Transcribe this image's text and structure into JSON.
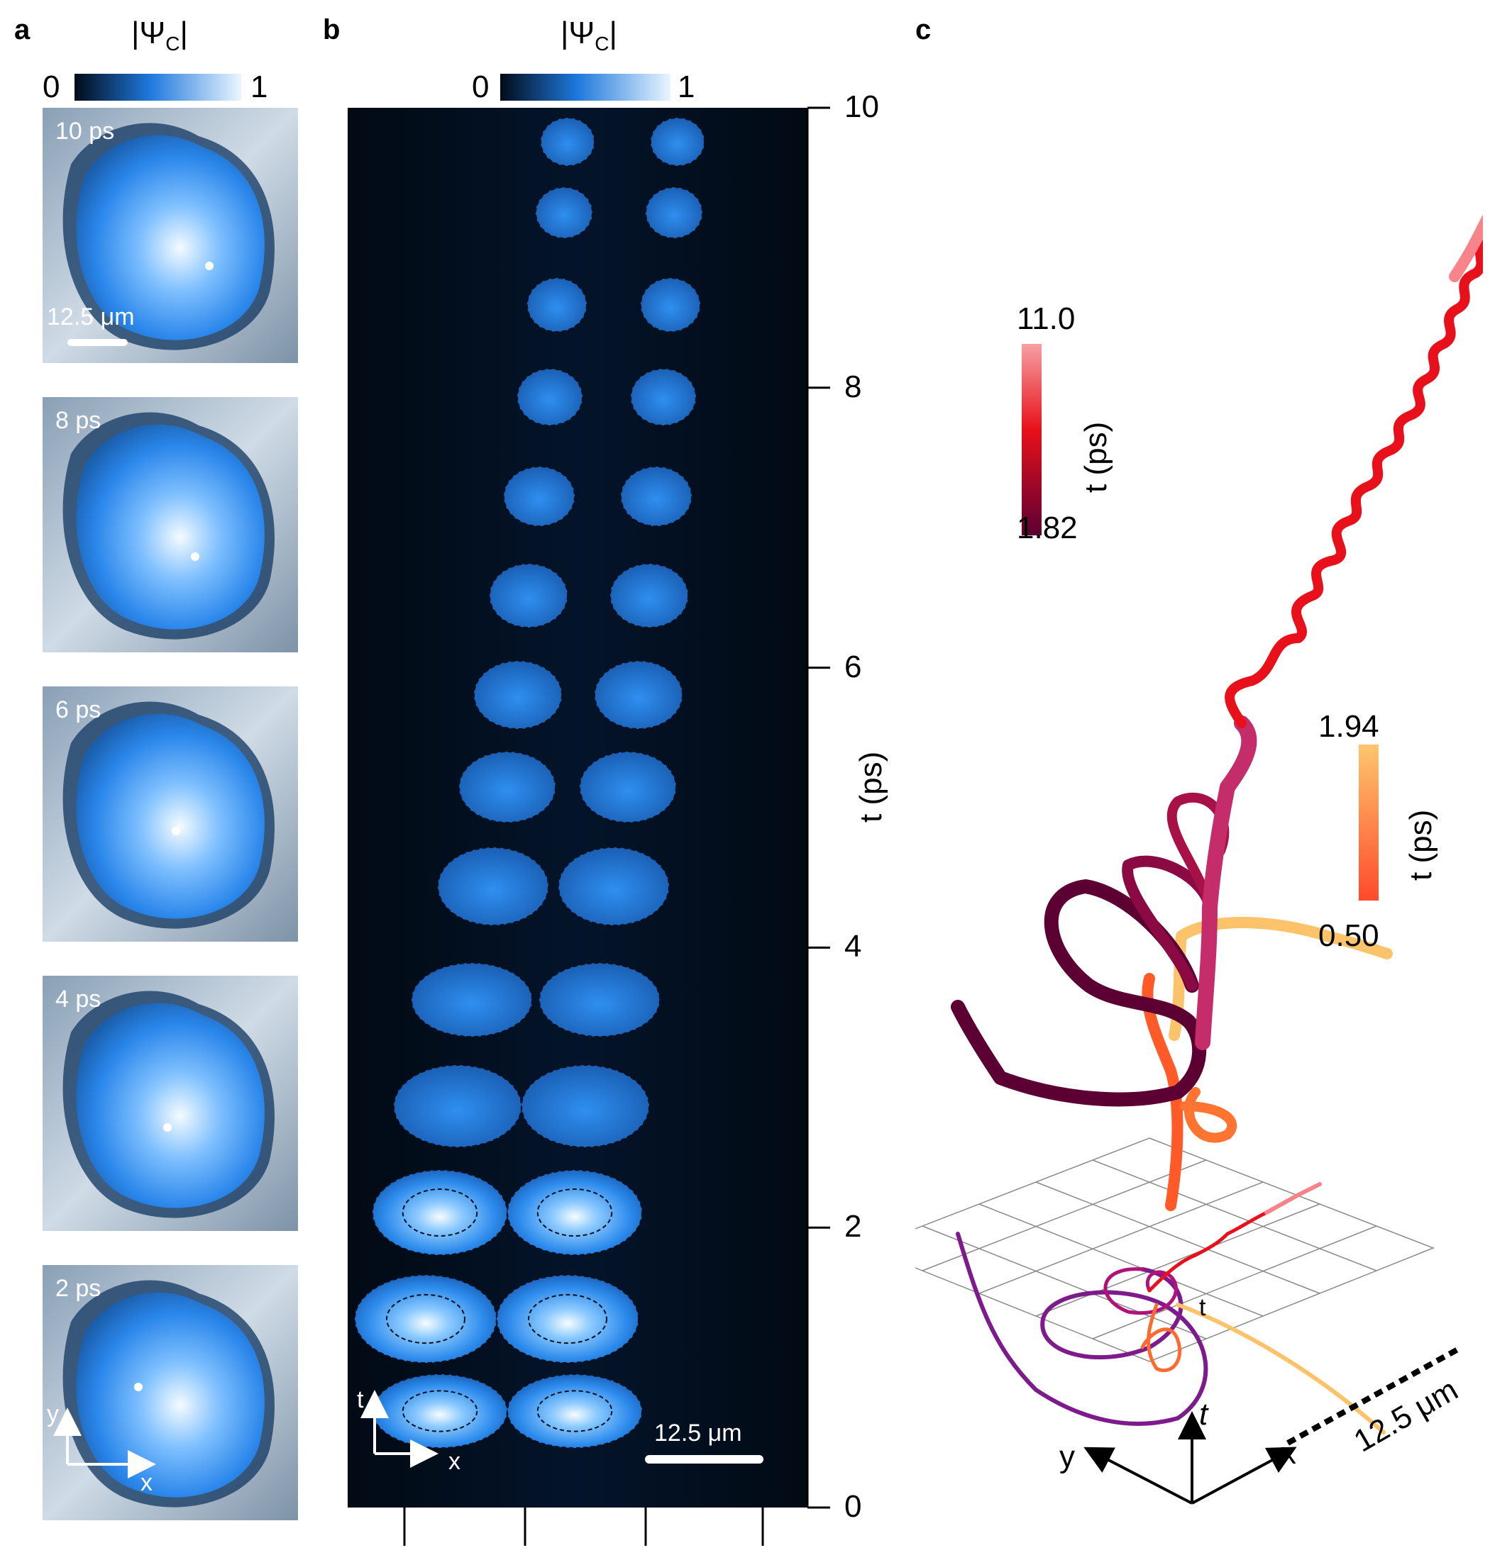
{
  "panel_a": {
    "letter": "a",
    "colorbar": {
      "title": "|Ψ",
      "subscript": "C",
      "title_end": "|",
      "min": "0",
      "max": "1"
    },
    "snapshots": [
      {
        "label": "10 ps"
      },
      {
        "label": "8 ps"
      },
      {
        "label": "6 ps"
      },
      {
        "label": "4 ps"
      },
      {
        "label": "2 ps"
      }
    ],
    "scalebar": "12.5 μm",
    "axis_y": "y",
    "axis_x": "x"
  },
  "panel_b": {
    "letter": "b",
    "colorbar": {
      "title": "|Ψ",
      "subscript": "C",
      "title_end": "|",
      "min": "0",
      "max": "1"
    },
    "yticks": [
      "0",
      "2",
      "4",
      "6",
      "8",
      "10"
    ],
    "ylabel": "t (ps)",
    "axis_t": "t",
    "axis_x": "x",
    "scalebar": "12.5 μm"
  },
  "panel_c": {
    "letter": "c",
    "colorbar_upper": {
      "max": "11.0",
      "min": "1.82",
      "label": "t (ps)"
    },
    "colorbar_lower": {
      "max": "1.94",
      "min": "0.50",
      "label": "t (ps)"
    },
    "scale_label": "12.5 μm",
    "axis_t": "t",
    "axis_x": "x",
    "axis_y": "y",
    "trajectory_tick": "t"
  },
  "colors": {
    "field_dark": "#04101f",
    "field_blue": "#1f7ae0",
    "field_light": "#e9f5ff",
    "traj_dark": "#5c0033",
    "traj_red": "#e8101a",
    "traj_pink": "#f38a8e",
    "traj_orange": "#ff5a28",
    "traj_yellow": "#fcc36a"
  }
}
